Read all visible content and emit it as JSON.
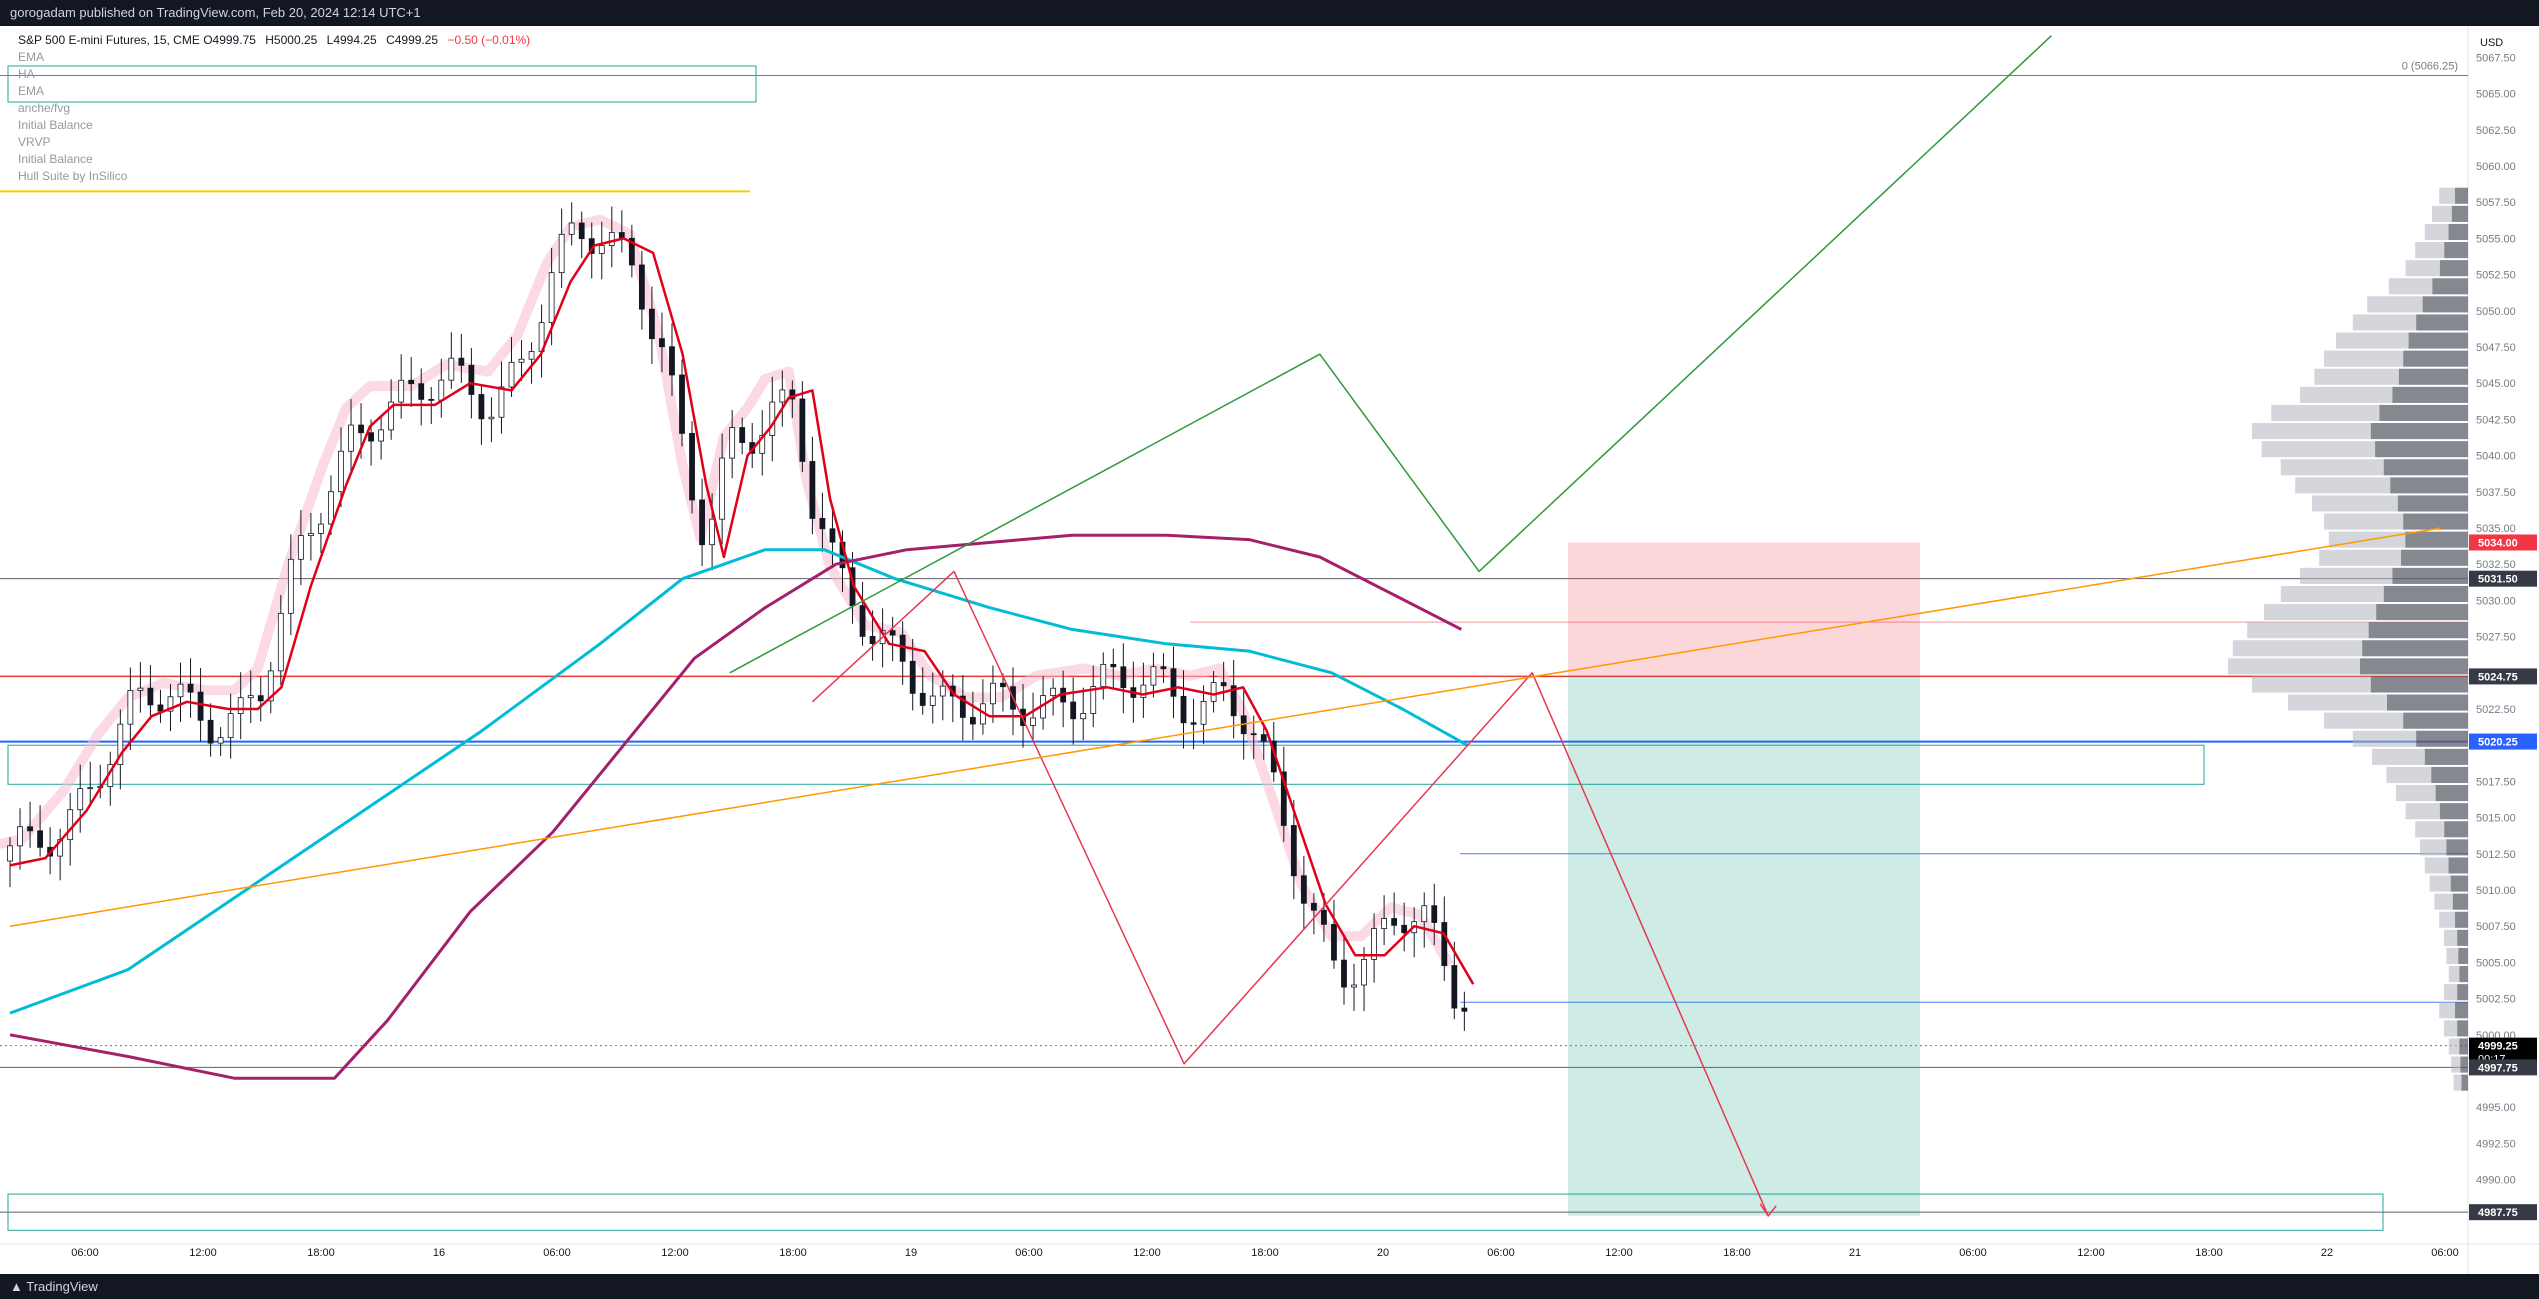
{
  "header": {
    "publish_note": "gorogadam published on TradingView.com, Feb 20, 2024 12:14 UTC+1"
  },
  "footer": {
    "logo_text": "TradingView"
  },
  "legend": {
    "symbol": "S&P 500 E-mini Futures, 15, CME",
    "open": "O4999.75",
    "high": "H5000.25",
    "low": "L4994.25",
    "close": "C4999.25",
    "change": "−0.50 (−0.01%)",
    "indicators": [
      "EMA",
      "HA",
      "EMA",
      "anche/fvg",
      "Initial Balance",
      "VRVP",
      "Initial Balance",
      "Hull Suite by InSilico"
    ]
  },
  "chart_data": {
    "type": "candlestick",
    "currency_label": "USD",
    "y_ticks": [
      "5067.50",
      "5065.00",
      "5062.50",
      "5060.00",
      "5057.50",
      "5055.00",
      "5052.50",
      "5050.00",
      "5047.50",
      "5045.00",
      "5042.50",
      "5040.00",
      "5037.50",
      "5035.00",
      "5032.50",
      "5030.00",
      "5027.50",
      "5025.00",
      "5022.50",
      "5020.00",
      "5017.50",
      "5015.00",
      "5012.50",
      "5010.00",
      "5007.50",
      "5005.00",
      "5002.50",
      "5000.00",
      "4997.50",
      "4995.00",
      "4992.50",
      "4990.00",
      "4987.50"
    ],
    "x_ticks": [
      "06:00",
      "12:00",
      "18:00",
      "16",
      "06:00",
      "12:00",
      "18:00",
      "19",
      "06:00",
      "12:00",
      "18:00",
      "20",
      "06:00",
      "12:00",
      "18:00",
      "21",
      "06:00",
      "12:00",
      "18:00",
      "22",
      "06:00",
      "12:00"
    ],
    "price_labels": [
      {
        "text": "5034.00",
        "bg": "#f23645"
      },
      {
        "text": "5031.50",
        "bg": "#363a45"
      },
      {
        "text": "5024.75",
        "bg": "#363a45"
      },
      {
        "text": "5020.25",
        "bg": "#2962ff"
      },
      {
        "text": "4999.25",
        "sub": "00:17",
        "bg": "#000000"
      },
      {
        "text": "4997.75",
        "bg": "#363a45"
      },
      {
        "text": "4987.75",
        "bg": "#363a45"
      }
    ],
    "fib_label": "0 (5066.25)",
    "last_price": 4999.25,
    "ema_red": [
      [
        0,
        5011.7
      ],
      [
        0.3,
        5012.2
      ],
      [
        0.65,
        5015.5
      ],
      [
        0.95,
        5019.5
      ],
      [
        1.2,
        5022
      ],
      [
        1.5,
        5023
      ],
      [
        1.85,
        5022.5
      ],
      [
        2.1,
        5022.5
      ],
      [
        2.3,
        5024
      ],
      [
        2.55,
        5031
      ],
      [
        2.85,
        5038
      ],
      [
        3.05,
        5042
      ],
      [
        3.25,
        5043.5
      ],
      [
        3.6,
        5043.5
      ],
      [
        3.9,
        5045
      ],
      [
        4.25,
        5044.5
      ],
      [
        4.5,
        5047
      ],
      [
        4.75,
        5052
      ],
      [
        4.95,
        5054.5
      ],
      [
        5.2,
        5055
      ],
      [
        5.45,
        5054
      ],
      [
        5.7,
        5047
      ],
      [
        5.9,
        5038
      ],
      [
        6.05,
        5033
      ],
      [
        6.25,
        5040
      ],
      [
        6.45,
        5042
      ],
      [
        6.6,
        5044
      ],
      [
        6.8,
        5044.5
      ],
      [
        6.95,
        5037
      ],
      [
        7.15,
        5031
      ],
      [
        7.45,
        5027
      ],
      [
        7.75,
        5026.5
      ],
      [
        8.0,
        5023.5
      ],
      [
        8.3,
        5022
      ],
      [
        8.6,
        5022
      ],
      [
        8.9,
        5023.5
      ],
      [
        9.3,
        5024
      ],
      [
        9.6,
        5023.5
      ],
      [
        9.9,
        5024
      ],
      [
        10.2,
        5023.5
      ],
      [
        10.45,
        5024
      ],
      [
        10.65,
        5021
      ],
      [
        10.9,
        5015
      ],
      [
        11.15,
        5009
      ],
      [
        11.4,
        5005.5
      ],
      [
        11.65,
        5005.5
      ],
      [
        11.9,
        5007.5
      ],
      [
        12.15,
        5007
      ],
      [
        12.4,
        5003.5
      ]
    ],
    "sma_cyan": [
      [
        0,
        5001.5
      ],
      [
        1.0,
        5004.5
      ],
      [
        2.0,
        5010
      ],
      [
        3.0,
        5015.5
      ],
      [
        4.0,
        5021
      ],
      [
        5.0,
        5027
      ],
      [
        5.7,
        5031.5
      ],
      [
        6.4,
        5033.5
      ],
      [
        6.9,
        5033.5
      ],
      [
        7.5,
        5031.5
      ],
      [
        8.3,
        5029.5
      ],
      [
        9.0,
        5028
      ],
      [
        9.8,
        5027
      ],
      [
        10.5,
        5026.5
      ],
      [
        11.2,
        5025
      ],
      [
        11.8,
        5022.5
      ],
      [
        12.35,
        5020
      ]
    ],
    "sma_purple": [
      [
        0,
        5000
      ],
      [
        1.0,
        4998.5
      ],
      [
        1.9,
        4997
      ],
      [
        2.75,
        4997
      ],
      [
        3.2,
        5001
      ],
      [
        3.9,
        5008.5
      ],
      [
        4.6,
        5014
      ],
      [
        5.2,
        5020
      ],
      [
        5.8,
        5026
      ],
      [
        6.4,
        5029.5
      ],
      [
        7.0,
        5032.5
      ],
      [
        7.6,
        5033.5
      ],
      [
        8.3,
        5034
      ],
      [
        9.0,
        5034.5
      ],
      [
        9.8,
        5034.5
      ],
      [
        10.5,
        5034.2
      ],
      [
        11.1,
        5033
      ],
      [
        11.7,
        5030.5
      ],
      [
        12.3,
        5028
      ]
    ],
    "green_path": [
      [
        6.1,
        5025
      ],
      [
        11.1,
        5047
      ],
      [
        12.45,
        5032
      ],
      [
        17.3,
        5069
      ]
    ],
    "red_path": [
      [
        6.8,
        5023
      ],
      [
        8.0,
        5032
      ],
      [
        9.95,
        4998
      ],
      [
        12.9,
        5025
      ],
      [
        14.9,
        4987.5
      ]
    ],
    "orange_trend": [
      [
        0,
        5007.5
      ],
      [
        20.6,
        5035
      ]
    ],
    "volume_profile_values": [
      0.12,
      0.15,
      0.18,
      0.22,
      0.26,
      0.33,
      0.42,
      0.48,
      0.55,
      0.6,
      0.64,
      0.7,
      0.82,
      0.9,
      0.86,
      0.78,
      0.72,
      0.65,
      0.6,
      0.58,
      0.62,
      0.7,
      0.78,
      0.85,
      0.92,
      0.98,
      1.0,
      0.9,
      0.75,
      0.6,
      0.48,
      0.4,
      0.34,
      0.3,
      0.26,
      0.22,
      0.2,
      0.18,
      0.16,
      0.14,
      0.12,
      0.1,
      0.09,
      0.08,
      0.1,
      0.12,
      0.1,
      0.08,
      0.07,
      0.06
    ]
  }
}
